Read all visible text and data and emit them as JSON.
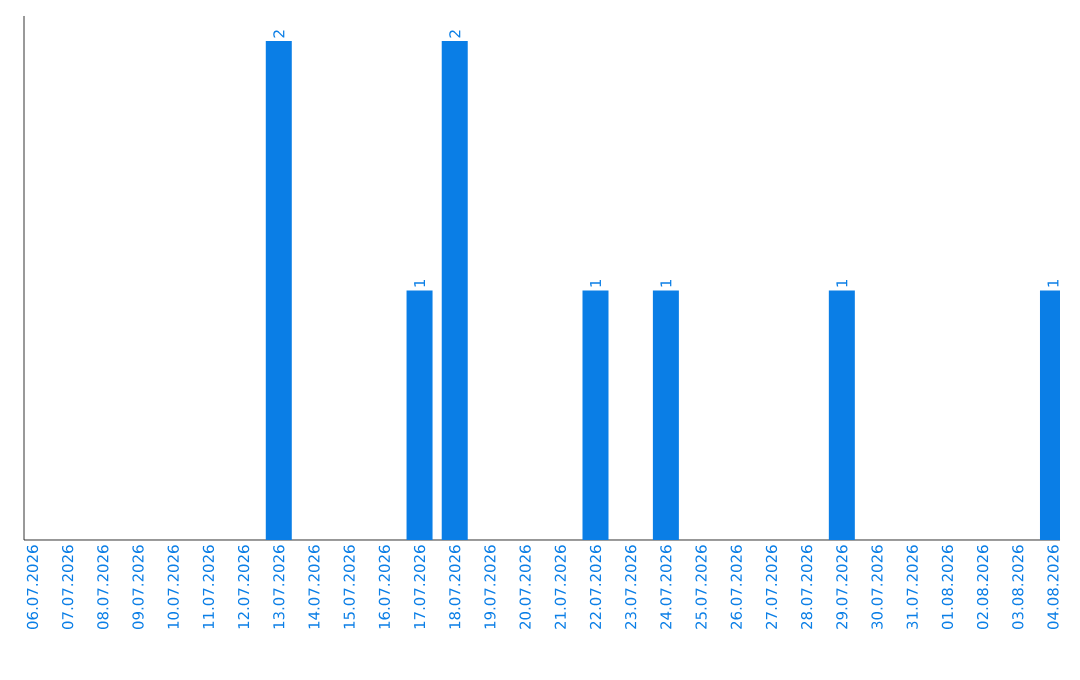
{
  "chart_data": {
    "type": "bar",
    "color": "#0a7ee6",
    "categories": [
      "06.07.2026",
      "07.07.2026",
      "08.07.2026",
      "09.07.2026",
      "10.07.2026",
      "11.07.2026",
      "12.07.2026",
      "13.07.2026",
      "14.07.2026",
      "15.07.2026",
      "16.07.2026",
      "17.07.2026",
      "18.07.2026",
      "19.07.2026",
      "20.07.2026",
      "21.07.2026",
      "22.07.2026",
      "23.07.2026",
      "24.07.2026",
      "25.07.2026",
      "26.07.2026",
      "27.07.2026",
      "28.07.2026",
      "29.07.2026",
      "30.07.2026",
      "31.07.2026",
      "01.08.2026",
      "02.08.2026",
      "03.08.2026",
      "04.08.2026"
    ],
    "values": [
      0,
      0,
      0,
      0,
      0,
      0,
      0,
      2,
      0,
      0,
      0,
      1,
      2,
      0,
      0,
      0,
      1,
      0,
      1,
      0,
      0,
      0,
      0,
      1,
      0,
      0,
      0,
      0,
      0,
      1
    ],
    "value_labels": [
      null,
      null,
      null,
      null,
      null,
      null,
      null,
      "2",
      null,
      null,
      null,
      "1",
      "2",
      null,
      null,
      null,
      "1",
      null,
      "1",
      null,
      null,
      null,
      null,
      "1",
      null,
      null,
      null,
      null,
      null,
      "1"
    ]
  }
}
